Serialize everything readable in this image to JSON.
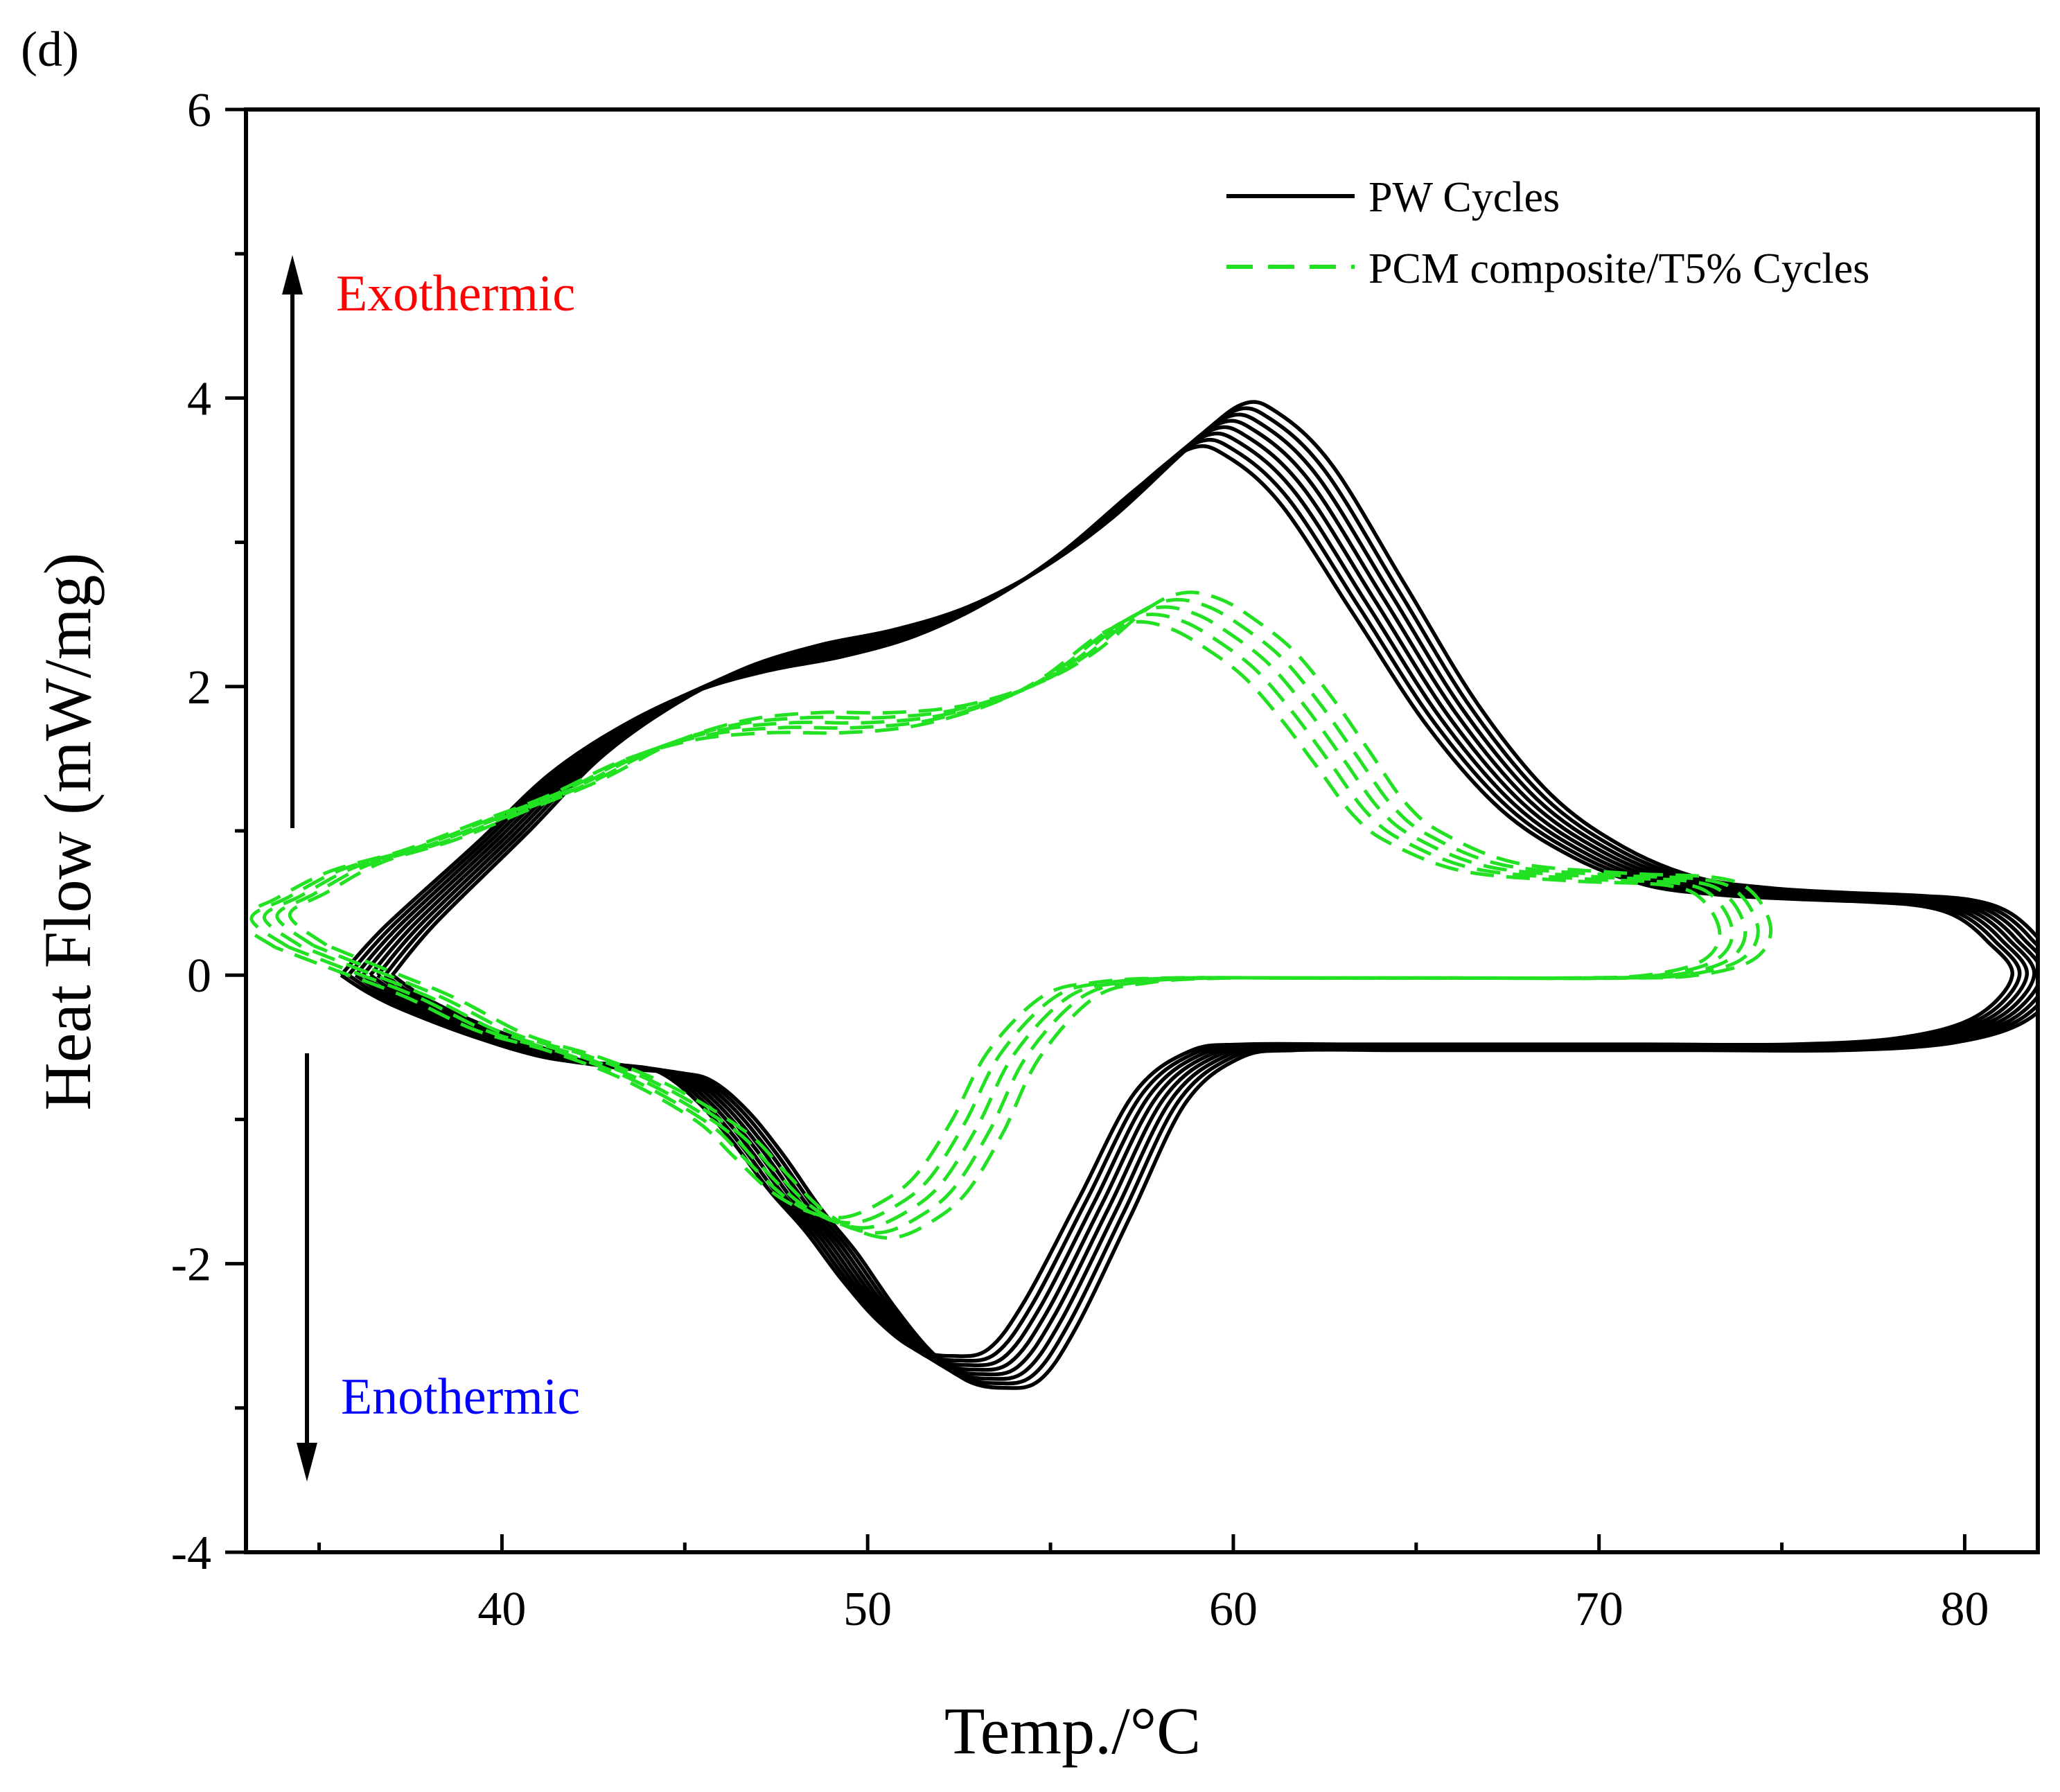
{
  "panel_label": "(d)",
  "chart_data": {
    "type": "line",
    "xlabel": "Temp./°C",
    "ylabel": "Heat Flow (mW/mg)",
    "xlim": [
      33,
      82
    ],
    "ylim": [
      -4,
      6
    ],
    "xticks": [
      40,
      50,
      60,
      70,
      80
    ],
    "yticks": [
      -4,
      -2,
      0,
      2,
      4,
      6
    ],
    "grid": false,
    "legend_position": "top-right",
    "legend": [
      {
        "label": "PW Cycles",
        "color": "#000000",
        "style": "solid"
      },
      {
        "label": "PCM composite/T5% Cycles",
        "color": "#22e022",
        "style": "dashed"
      }
    ],
    "annotations": [
      {
        "text": "Exothermic",
        "color": "#ff0000",
        "arrow": "up"
      },
      {
        "text": "Enothermic",
        "color": "#0000ff",
        "arrow": "down"
      }
    ],
    "series": [
      {
        "group": "PW Cycles",
        "cycles": 8,
        "color": "#000000",
        "style": "solid",
        "x": [
          36.3,
          37.5,
          40,
          42,
          44,
          46,
          48,
          50,
          52,
          54,
          56,
          58,
          59.5,
          60.5,
          62,
          64,
          66,
          68,
          70,
          72,
          74,
          76,
          78,
          79.5,
          80.5,
          81.3,
          82,
          81,
          79,
          76,
          72,
          68,
          64,
          61,
          59.5,
          58,
          56.5,
          55,
          54,
          53,
          52,
          51,
          50,
          49,
          48,
          47,
          46,
          45,
          44,
          42,
          40,
          38,
          37,
          36.3
        ],
        "y": [
          0.0,
          0.35,
          0.95,
          1.45,
          1.8,
          2.05,
          2.2,
          2.3,
          2.45,
          2.7,
          3.05,
          3.5,
          3.8,
          3.75,
          3.4,
          2.6,
          1.8,
          1.2,
          0.85,
          0.65,
          0.58,
          0.55,
          0.53,
          0.5,
          0.42,
          0.25,
          0.0,
          -0.3,
          -0.45,
          -0.5,
          -0.5,
          -0.5,
          -0.5,
          -0.5,
          -0.55,
          -0.85,
          -1.6,
          -2.35,
          -2.7,
          -2.75,
          -2.7,
          -2.5,
          -2.2,
          -1.85,
          -1.55,
          -1.2,
          -0.9,
          -0.7,
          -0.65,
          -0.6,
          -0.45,
          -0.25,
          -0.12,
          0.0
        ]
      },
      {
        "group": "PCM composite/T5% Cycles",
        "cycles": 5,
        "color": "#22e022",
        "style": "dashed",
        "x": [
          34.5,
          33.5,
          34.5,
          36,
          38,
          40,
          42,
          44,
          46,
          48,
          50,
          52,
          54,
          55.5,
          57,
          58,
          59,
          60,
          61,
          62,
          63,
          64,
          65,
          67,
          70,
          72.5,
          73.5,
          74,
          73.5,
          72,
          70,
          66,
          62,
          59,
          57,
          55.5,
          54,
          53,
          52,
          51,
          50,
          49,
          48,
          47,
          46,
          44,
          42,
          40,
          38,
          36,
          34.5
        ],
        "y": [
          0.2,
          0.4,
          0.55,
          0.75,
          0.9,
          1.1,
          1.3,
          1.55,
          1.7,
          1.75,
          1.75,
          1.8,
          1.95,
          2.15,
          2.45,
          2.55,
          2.5,
          2.35,
          2.15,
          1.85,
          1.5,
          1.15,
          0.95,
          0.75,
          0.68,
          0.65,
          0.55,
          0.3,
          0.1,
          0.0,
          -0.02,
          -0.02,
          -0.02,
          -0.02,
          -0.05,
          -0.15,
          -0.55,
          -1.05,
          -1.45,
          -1.65,
          -1.75,
          -1.7,
          -1.55,
          -1.3,
          -1.05,
          -0.75,
          -0.55,
          -0.4,
          -0.15,
          0.05,
          0.2
        ]
      }
    ]
  }
}
